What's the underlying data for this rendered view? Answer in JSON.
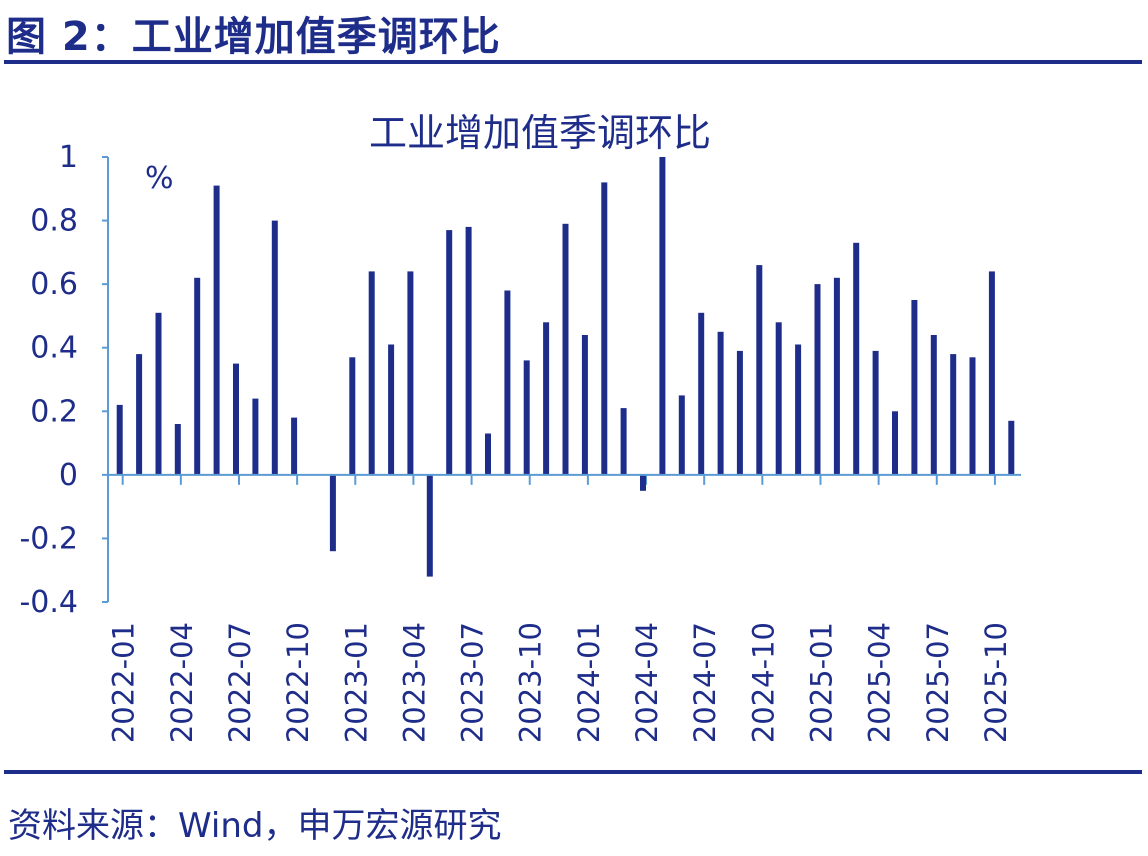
{
  "header": {
    "figure_title": "图 2：工业增加值季调环比"
  },
  "footer": {
    "source": "资料来源：Wind，申万宏源研究"
  },
  "colors": {
    "accent": "#1f2d8a",
    "axis": "#5b9bd5"
  },
  "chart_data": {
    "type": "bar",
    "title": "工业增加值季调环比",
    "unit": "%",
    "ylabel": "",
    "xlabel": "",
    "ylim": [
      -0.4,
      1.0
    ],
    "yticks": [
      1,
      0.8,
      0.6,
      0.4,
      0.2,
      0,
      -0.2,
      -0.4
    ],
    "ytick_labels": [
      "1",
      "0.8",
      "0.6",
      "0.4",
      "0.2",
      "0",
      "-0.2",
      "-0.4"
    ],
    "xtick_labels": [
      "2022-01",
      "2022-04",
      "2022-07",
      "2022-10",
      "2023-01",
      "2023-04",
      "2023-07",
      "2023-10",
      "2024-01",
      "2024-04",
      "2024-07",
      "2024-10",
      "2025-01",
      "2025-04",
      "2025-07",
      "2025-10"
    ],
    "grid": false,
    "series": [
      {
        "values": [
          0.22,
          0.38,
          0.51,
          0.16,
          0.62,
          0.91,
          0.35,
          0.24,
          0.8,
          0.18,
          null,
          -0.24,
          0.37,
          0.64,
          0.41,
          0.64,
          -0.32,
          0.77,
          0.78,
          0.13,
          0.58,
          0.36,
          0.48,
          0.79,
          0.44,
          0.92,
          0.21,
          -0.05,
          1.0,
          0.25,
          0.51,
          0.45,
          0.39,
          0.66,
          0.48,
          0.41,
          0.6,
          0.62,
          0.73,
          0.39,
          0.2,
          0.55,
          0.44,
          0.38,
          0.37,
          0.64,
          0.17
        ]
      }
    ]
  }
}
